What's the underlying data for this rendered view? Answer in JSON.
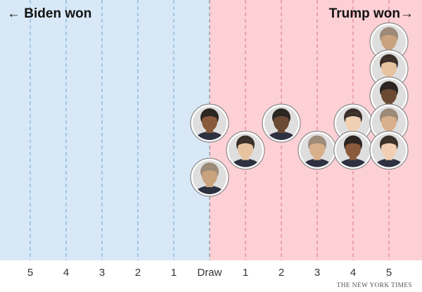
{
  "colors": {
    "biden_bg": "#d8e8f6",
    "trump_bg": "#fdd0d5",
    "biden_grid": "#6aa8dc",
    "trump_grid": "#d9707f",
    "draw_line": "#777777"
  },
  "credit": "THE NEW YORK TIMES",
  "chart_data": {
    "type": "scatter",
    "title": "",
    "xlabel": "",
    "ylabel": "",
    "x_categories": [
      "5",
      "4",
      "3",
      "2",
      "1",
      "Draw",
      "1",
      "2",
      "3",
      "4",
      "5"
    ],
    "left_label": "← Biden won",
    "right_label": "Trump won→",
    "grid": true,
    "series": [
      {
        "values": [
          {
            "x": "Draw",
            "stack": 2
          },
          {
            "x": "Draw",
            "stack": 0
          },
          {
            "x": "Trump +1",
            "stack": 1
          },
          {
            "x": "Trump +2",
            "stack": 2
          },
          {
            "x": "Trump +3",
            "stack": 1
          },
          {
            "x": "Trump +4",
            "stack": 2
          },
          {
            "x": "Trump +4",
            "stack": 1
          },
          {
            "x": "Trump +5",
            "stack": 5
          },
          {
            "x": "Trump +5",
            "stack": 4
          },
          {
            "x": "Trump +5",
            "stack": 3
          },
          {
            "x": "Trump +5",
            "stack": 2
          },
          {
            "x": "Trump +5",
            "stack": 1
          }
        ]
      }
    ]
  }
}
